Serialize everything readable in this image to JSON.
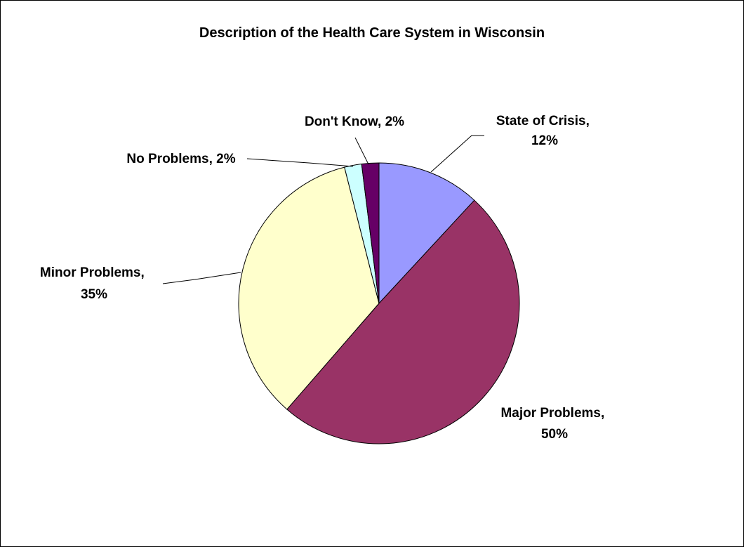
{
  "chart_data": {
    "type": "pie",
    "title": "Description of the Health Care System in Wisconsin",
    "slices": [
      {
        "category": "State of Crisis",
        "value": 12,
        "label_line1": "State of Crisis,",
        "label_line2": "12%",
        "color": "#9999FF"
      },
      {
        "category": "Major Problems",
        "value": 50,
        "label_line1": "Major Problems,",
        "label_line2": "50%",
        "color": "#993366"
      },
      {
        "category": "Minor Problems",
        "value": 35,
        "label_line1": "Minor Problems,",
        "label_line2": "35%",
        "color": "#FFFFCC"
      },
      {
        "category": "No Problems",
        "value": 2,
        "label_line1": "No Problems, 2%",
        "label_line2": "",
        "color": "#CCFFFF"
      },
      {
        "category": "Don't Know",
        "value": 2,
        "label_line1": "Don't Know, 2%",
        "label_line2": "",
        "color": "#660066"
      }
    ]
  }
}
